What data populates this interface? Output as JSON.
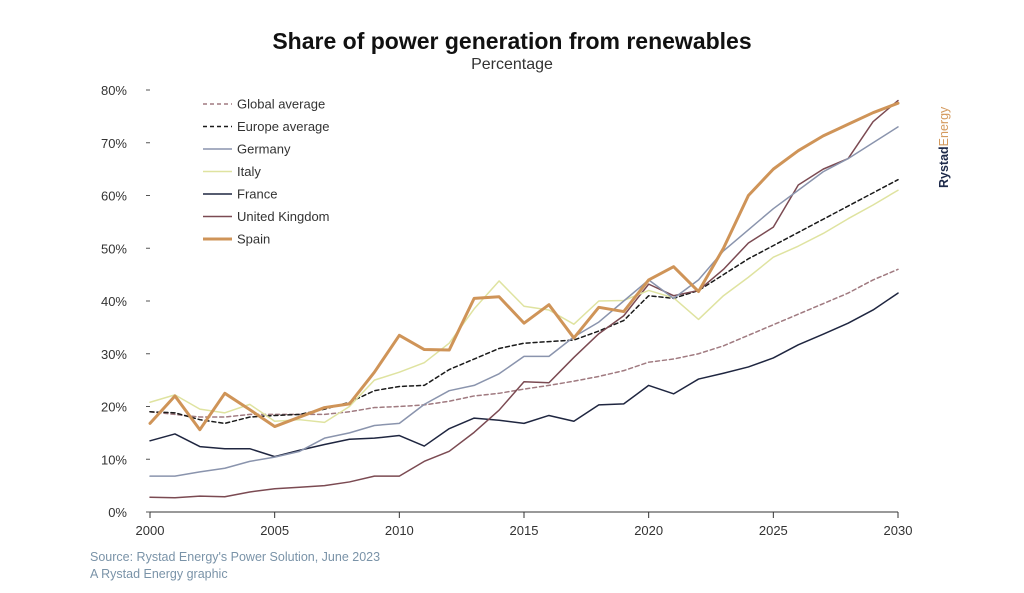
{
  "header": {
    "title": "Share of power generation from renewables",
    "subtitle": "Percentage"
  },
  "footer": {
    "source": "Source: Rystad Energy's Power Solution, June 2023",
    "credit": "A Rystad Energy graphic"
  },
  "brand": {
    "part1": "Rystad",
    "part2": "Energy",
    "color1": "#1e2a4a",
    "color2": "#d49a5e"
  },
  "chart_data": {
    "type": "line",
    "title": "Share of power generation from renewables",
    "subtitle": "Percentage",
    "xlim": [
      2000,
      2030
    ],
    "ylim": [
      0,
      80
    ],
    "x_ticks": [
      "2000",
      "2005",
      "2010",
      "2015",
      "2020",
      "2025",
      "2030"
    ],
    "y_ticks": [
      "0%",
      "10%",
      "20%",
      "30%",
      "40%",
      "50%",
      "60%",
      "70%",
      "80%"
    ],
    "grid": false,
    "legend_position": "top-left",
    "x": [
      2000,
      2001,
      2002,
      2003,
      2004,
      2005,
      2006,
      2007,
      2008,
      2009,
      2010,
      2011,
      2012,
      2013,
      2014,
      2015,
      2016,
      2017,
      2018,
      2019,
      2020,
      2021,
      2022,
      2023,
      2024,
      2025,
      2026,
      2027,
      2028,
      2029,
      2030
    ],
    "series": [
      {
        "name": "Global average",
        "color": "#a07a80",
        "dash": "4,3",
        "width": 1.5,
        "values": [
          19,
          18.5,
          18,
          18,
          18.5,
          18.5,
          18.5,
          18.5,
          19,
          19.8,
          20,
          20.3,
          21,
          22,
          22.5,
          23.3,
          24,
          24.8,
          25.7,
          26.8,
          28.4,
          29,
          30,
          31.5,
          33.5,
          35.5,
          37.5,
          39.5,
          41.5,
          44,
          46
        ]
      },
      {
        "name": "Europe average",
        "color": "#1a1a1a",
        "dash": "4,3",
        "width": 1.5,
        "values": [
          19,
          18.8,
          17.5,
          16.8,
          18,
          18.3,
          18.5,
          19.5,
          20.8,
          23,
          23.8,
          24,
          27,
          29,
          31,
          32,
          32.3,
          32.6,
          34.3,
          36.3,
          41,
          40.5,
          42,
          45,
          48,
          50.5,
          53,
          55.5,
          58,
          60.5,
          63
        ]
      },
      {
        "name": "Germany",
        "color": "#8a94ad",
        "dash": "",
        "width": 1.5,
        "values": [
          6.8,
          6.8,
          7.6,
          8.3,
          9.6,
          10.4,
          11.5,
          14,
          15,
          16.4,
          16.8,
          20.4,
          23,
          24,
          26.2,
          29.5,
          29.5,
          33.2,
          36,
          40,
          44,
          40.5,
          44,
          49.5,
          53.5,
          57.5,
          61,
          64.5,
          67,
          70,
          73
        ]
      },
      {
        "name": "Italy",
        "color": "#dfe3a0",
        "dash": "",
        "width": 1.5,
        "values": [
          20.8,
          22.2,
          19.5,
          18.8,
          20.4,
          17.2,
          17.5,
          17,
          20,
          25,
          26.5,
          28.3,
          32,
          38.5,
          43.8,
          39,
          38.3,
          35.6,
          40,
          40.1,
          42,
          40.6,
          36.5,
          41,
          44.5,
          48.3,
          50.4,
          52.8,
          55.6,
          58.2,
          61
        ]
      },
      {
        "name": "France",
        "color": "#1f2640",
        "dash": "",
        "width": 1.5,
        "values": [
          13.5,
          14.8,
          12.4,
          12,
          12,
          10.5,
          11.7,
          12.8,
          13.8,
          14,
          14.5,
          12.5,
          15.8,
          17.8,
          17.4,
          16.8,
          18.3,
          17.2,
          20.3,
          20.5,
          24,
          22.4,
          25.2,
          26.3,
          27.5,
          29.2,
          31.7,
          33.7,
          35.8,
          38.3,
          41.5
        ]
      },
      {
        "name": "United Kingdom",
        "color": "#7b4a52",
        "dash": "",
        "width": 1.5,
        "values": [
          2.8,
          2.7,
          3,
          2.9,
          3.8,
          4.4,
          4.7,
          5,
          5.7,
          6.8,
          6.8,
          9.6,
          11.5,
          15.1,
          19.3,
          24.7,
          24.5,
          29.3,
          33.8,
          37.2,
          43.2,
          41,
          42,
          46,
          51,
          54,
          62,
          65,
          67,
          74,
          78
        ]
      },
      {
        "name": "Spain",
        "color": "#cf9458",
        "dash": "",
        "width": 3,
        "values": [
          16.8,
          22,
          15.6,
          22.5,
          19.4,
          16.2,
          18,
          19.8,
          20.5,
          26.5,
          33.5,
          30.8,
          30.7,
          40.5,
          40.8,
          35.8,
          39.3,
          33,
          38.8,
          38,
          44,
          46.5,
          41.8,
          50,
          60,
          65,
          68.5,
          71.3,
          73.5,
          75.7,
          77.5
        ]
      }
    ]
  }
}
